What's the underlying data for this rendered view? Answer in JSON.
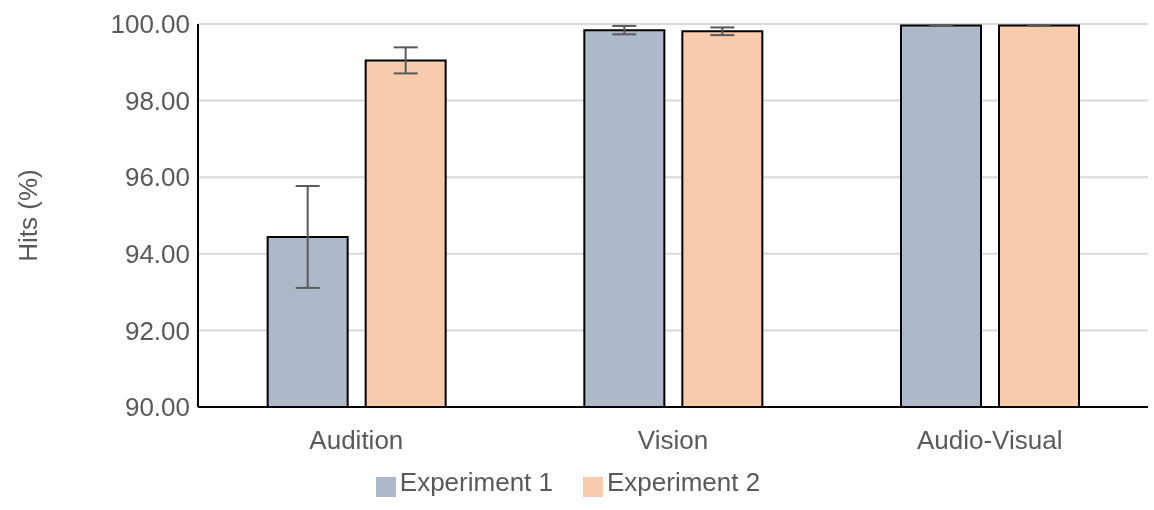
{
  "chart_data": {
    "type": "bar",
    "ylabel": "Hits (%)",
    "categories": [
      "Audition",
      "Vision",
      "Audio-Visual"
    ],
    "series": [
      {
        "name": "Experiment 1",
        "color": "#adb9ca",
        "values": [
          94.44,
          99.84,
          99.96
        ],
        "errors": [
          1.33,
          0.11,
          0.01
        ]
      },
      {
        "name": "Experiment 2",
        "color": "#f8cbad",
        "values": [
          99.05,
          99.81,
          99.96
        ],
        "errors": [
          0.34,
          0.1,
          0.01
        ]
      }
    ],
    "ylim": [
      90,
      100
    ],
    "yticks": [
      {
        "value": 90,
        "label": "90.00"
      },
      {
        "value": 92,
        "label": "92.00"
      },
      {
        "value": 94,
        "label": "94.00"
      },
      {
        "value": 96,
        "label": "96.00"
      },
      {
        "value": 98,
        "label": "98.00"
      },
      {
        "value": 100,
        "label": "100.00"
      }
    ],
    "grid": "y",
    "legend": "bottom"
  }
}
